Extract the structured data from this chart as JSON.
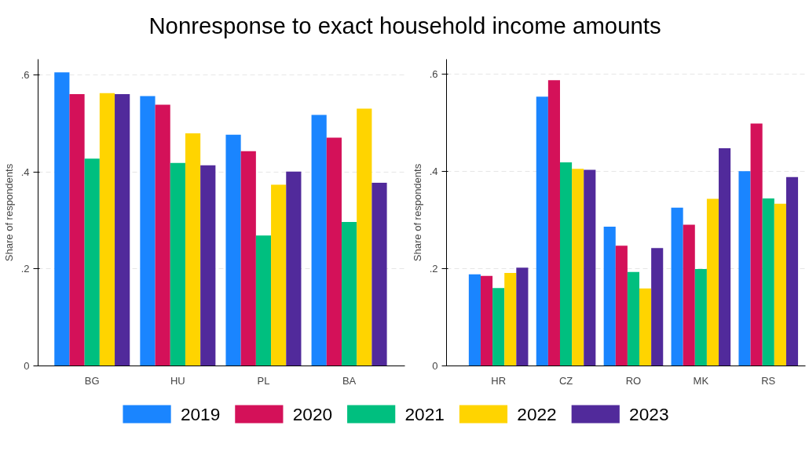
{
  "chart_data": [
    {
      "type": "bar",
      "title": "Nonresponse to exact household income amounts",
      "ylabel": "Share of respondents",
      "categories": [
        "BG",
        "HU",
        "PL",
        "BA"
      ],
      "series": [
        {
          "name": "2019",
          "color": "#1a85ff",
          "values": [
            0.606,
            0.557,
            0.477,
            0.518
          ]
        },
        {
          "name": "2020",
          "color": "#d41159",
          "values": [
            0.561,
            0.539,
            0.443,
            0.471
          ]
        },
        {
          "name": "2021",
          "color": "#00bf7f",
          "values": [
            0.428,
            0.419,
            0.269,
            0.297
          ]
        },
        {
          "name": "2022",
          "color": "#ffd400",
          "values": [
            0.563,
            0.48,
            0.374,
            0.531
          ]
        },
        {
          "name": "2023",
          "color": "#512a9b",
          "values": [
            0.561,
            0.414,
            0.401,
            0.378
          ]
        }
      ],
      "ylim": [
        0,
        0.633
      ],
      "yticks": [
        0,
        {
          "value": 0.2,
          "label": ".2"
        },
        {
          "value": 0.4,
          "label": ".4"
        },
        {
          "value": 0.6,
          "label": ".6"
        }
      ],
      "grid": "y",
      "legend": "bottom"
    },
    {
      "type": "bar",
      "ylabel": "Share of respondents",
      "categories": [
        "HR",
        "CZ",
        "RO",
        "MK",
        "RS"
      ],
      "series": [
        {
          "color": "#1a85ff",
          "values": [
            0.188,
            0.553,
            0.286,
            0.325,
            0.4
          ]
        },
        {
          "color": "#d41159",
          "values": [
            0.185,
            0.587,
            0.247,
            0.29,
            0.498
          ]
        },
        {
          "color": "#00bf7f",
          "values": [
            0.16,
            0.418,
            0.193,
            0.199,
            0.344
          ]
        },
        {
          "color": "#ffd400",
          "values": [
            0.191,
            0.405,
            0.159,
            0.343,
            0.333
          ]
        },
        {
          "color": "#512a9b",
          "values": [
            0.202,
            0.403,
            0.242,
            0.447,
            0.388
          ]
        }
      ],
      "ylim": [
        0,
        0.63
      ],
      "yticks": [
        0,
        {
          "value": 0.2,
          "label": ".2"
        },
        {
          "value": 0.4,
          "label": ".4"
        },
        {
          "value": 0.6,
          "label": ".6"
        }
      ],
      "grid": "y"
    }
  ]
}
